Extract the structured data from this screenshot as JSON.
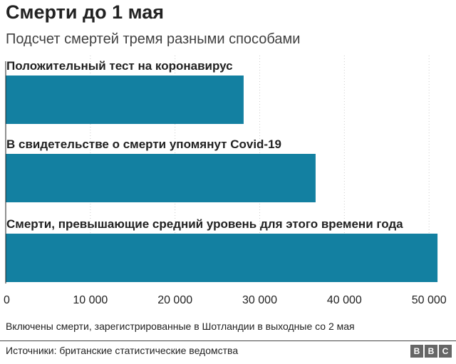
{
  "header": {
    "title": "Смерти до 1 мая",
    "subtitle": "Подсчет смертей тремя разными способами"
  },
  "chart_data": {
    "type": "bar",
    "orientation": "horizontal",
    "categories": [
      "Положительный тест на коронавирус",
      "В свидетельстве о смерти упомянут Covid-19",
      "Смерти, превышающие средний уровень для этого времени года"
    ],
    "values": [
      28100,
      36600,
      51000
    ],
    "xlim": [
      0,
      51500
    ],
    "ticks": [
      0,
      10000,
      20000,
      30000,
      40000,
      50000
    ],
    "tick_labels": [
      "0",
      "10 000",
      "20 000",
      "30 000",
      "40 000",
      "50 000"
    ],
    "grid": "vertical dotted",
    "bar_color": "#1380a1",
    "grid_color": "#cccccc"
  },
  "footer": {
    "note": "Включены смерти, зарегистрированные в Шотландии в выходные со 2 мая",
    "source": "Источники: британские статистические ведомства",
    "logo_letters": [
      "B",
      "B",
      "C"
    ]
  }
}
